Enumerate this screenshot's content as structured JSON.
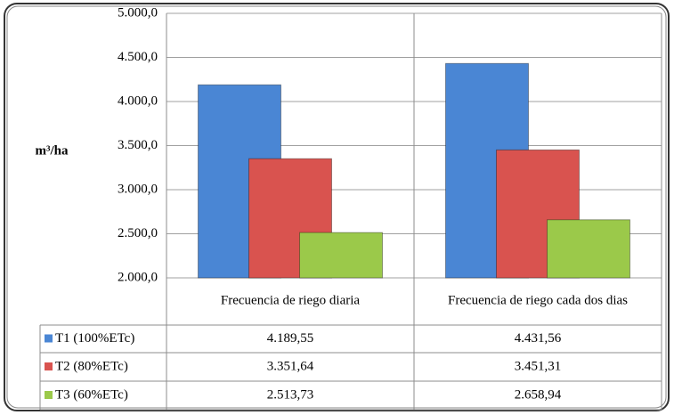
{
  "chart_data": {
    "type": "bar",
    "y_label": "m³/ha",
    "categories": [
      "Frecuencia de riego diaria",
      "Frecuencia de riego cada dos dias"
    ],
    "series": [
      {
        "name": "T1 (100%ETc)",
        "color": "#4a86d4",
        "values": [
          4189.55,
          4431.56
        ],
        "value_labels": [
          "4.189,55",
          "4.431,56"
        ]
      },
      {
        "name": "T2 (80%ETc)",
        "color": "#d9534f",
        "values": [
          3351.64,
          3451.31
        ],
        "value_labels": [
          "3.351,64",
          "3.451,31"
        ]
      },
      {
        "name": "T3 (60%ETc)",
        "color": "#9bc94a",
        "values": [
          2513.73,
          2658.94
        ],
        "value_labels": [
          "2.513,73",
          "2.658,94"
        ]
      }
    ],
    "ylim": [
      2000,
      5000
    ],
    "yticks": [
      {
        "value": 2000,
        "label": "2.000,0"
      },
      {
        "value": 2500,
        "label": "2.500,0"
      },
      {
        "value": 3000,
        "label": "3.000,0"
      },
      {
        "value": 3500,
        "label": "3.500,0"
      },
      {
        "value": 4000,
        "label": "4.000,0"
      },
      {
        "value": 4500,
        "label": "4.500,0"
      },
      {
        "value": 5000,
        "label": "5.000,0"
      }
    ],
    "grid": true
  }
}
